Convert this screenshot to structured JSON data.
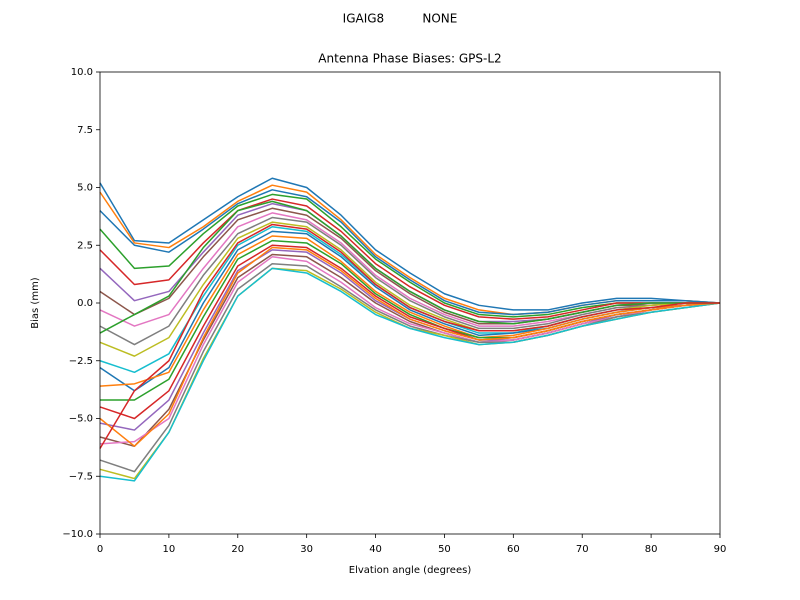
{
  "chart_data": {
    "type": "line",
    "suptitle": "IGAIG8          NONE",
    "title": "Antenna Phase Biases: GPS-L2",
    "xlabel": "Elvation angle (degrees)",
    "ylabel": "Bias (mm)",
    "x": [
      0,
      5,
      10,
      15,
      20,
      25,
      30,
      35,
      40,
      45,
      50,
      55,
      60,
      65,
      70,
      75,
      80,
      85,
      90
    ],
    "xlim": [
      0,
      90
    ],
    "xticks": [
      0,
      10,
      20,
      30,
      40,
      50,
      60,
      70,
      80,
      90
    ],
    "ylim": [
      -10,
      10
    ],
    "yticks": [
      {
        "value": -10,
        "label": "−10.0"
      },
      {
        "value": -7.5,
        "label": "−7.5"
      },
      {
        "value": -5,
        "label": "−5.0"
      },
      {
        "value": -2.5,
        "label": "−2.5"
      },
      {
        "value": 0,
        "label": "0.0"
      },
      {
        "value": 2.5,
        "label": "2.5"
      },
      {
        "value": 5,
        "label": "5.0"
      },
      {
        "value": 7.5,
        "label": "7.5"
      },
      {
        "value": 10,
        "label": "10.0"
      }
    ],
    "grid": false,
    "series": [
      {
        "color": "#1f77b4",
        "values": [
          5.2,
          2.7,
          2.6,
          3.6,
          4.6,
          5.4,
          5.0,
          3.8,
          2.3,
          1.3,
          0.4,
          -0.1,
          -0.3,
          -0.3,
          0.0,
          0.2,
          0.2,
          0.1,
          0
        ]
      },
      {
        "color": "#ff7f0e",
        "values": [
          4.8,
          2.6,
          2.4,
          3.3,
          4.4,
          5.1,
          4.8,
          3.6,
          2.1,
          1.1,
          0.2,
          -0.3,
          -0.5,
          -0.4,
          -0.1,
          0.1,
          0.1,
          0.1,
          0
        ]
      },
      {
        "color": "#2ca02c",
        "values": [
          3.2,
          1.5,
          1.6,
          3.0,
          4.2,
          4.7,
          4.5,
          3.3,
          1.9,
          0.9,
          0.0,
          -0.5,
          -0.6,
          -0.5,
          -0.2,
          0.0,
          0.0,
          0.0,
          0
        ]
      },
      {
        "color": "#d62728",
        "values": [
          2.3,
          0.8,
          1.0,
          2.6,
          4.0,
          4.5,
          4.2,
          3.1,
          1.7,
          0.7,
          -0.1,
          -0.6,
          -0.7,
          -0.6,
          -0.3,
          0.0,
          0.0,
          0.0,
          0
        ]
      },
      {
        "color": "#9467bd",
        "values": [
          1.5,
          0.1,
          0.5,
          2.2,
          3.8,
          4.3,
          4.0,
          2.9,
          1.5,
          0.5,
          -0.3,
          -0.8,
          -0.8,
          -0.7,
          -0.4,
          -0.1,
          0.0,
          0.0,
          0
        ]
      },
      {
        "color": "#8c564b",
        "values": [
          0.5,
          -0.5,
          0.2,
          2.0,
          3.6,
          4.1,
          3.8,
          2.8,
          1.4,
          0.4,
          -0.4,
          -0.9,
          -0.9,
          -0.7,
          -0.4,
          -0.1,
          -0.1,
          0.0,
          0
        ]
      },
      {
        "color": "#e377c2",
        "values": [
          -0.3,
          -1.0,
          -0.5,
          1.5,
          3.3,
          3.9,
          3.6,
          2.6,
          1.2,
          0.2,
          -0.5,
          -1.0,
          -1.0,
          -0.8,
          -0.5,
          -0.2,
          -0.1,
          0.0,
          0
        ]
      },
      {
        "color": "#7f7f7f",
        "values": [
          -1.0,
          -1.8,
          -1.0,
          1.2,
          3.0,
          3.7,
          3.5,
          2.5,
          1.1,
          0.1,
          -0.6,
          -1.1,
          -1.1,
          -0.9,
          -0.5,
          -0.2,
          -0.1,
          0.0,
          0
        ]
      },
      {
        "color": "#bcbd22",
        "values": [
          -1.7,
          -2.3,
          -1.5,
          0.8,
          2.8,
          3.5,
          3.3,
          2.3,
          0.9,
          -0.1,
          -0.7,
          -1.2,
          -1.2,
          -1.0,
          -0.6,
          -0.3,
          -0.1,
          0.0,
          0
        ]
      },
      {
        "color": "#17becf",
        "values": [
          -2.5,
          -3.0,
          -2.2,
          0.3,
          2.5,
          3.3,
          3.1,
          2.1,
          0.8,
          -0.2,
          -0.8,
          -1.3,
          -1.3,
          -1.0,
          -0.6,
          -0.3,
          -0.2,
          -0.1,
          0
        ]
      },
      {
        "color": "#1f77b4",
        "values": [
          -2.8,
          -3.8,
          -2.8,
          0.0,
          2.3,
          3.1,
          3.0,
          2.0,
          0.7,
          -0.3,
          -0.9,
          -1.4,
          -1.3,
          -1.1,
          -0.7,
          -0.4,
          -0.2,
          -0.1,
          0
        ]
      },
      {
        "color": "#ff7f0e",
        "values": [
          -3.6,
          -3.5,
          -3.0,
          -0.3,
          2.1,
          2.9,
          2.8,
          1.8,
          0.5,
          -0.4,
          -1.0,
          -1.5,
          -1.4,
          -1.1,
          -0.7,
          -0.4,
          -0.2,
          -0.1,
          0
        ]
      },
      {
        "color": "#2ca02c",
        "values": [
          -4.2,
          -4.2,
          -3.3,
          -0.6,
          1.9,
          2.7,
          2.6,
          1.7,
          0.4,
          -0.5,
          -1.1,
          -1.5,
          -1.5,
          -1.2,
          -0.8,
          -0.5,
          -0.3,
          -0.1,
          0
        ]
      },
      {
        "color": "#d62728",
        "values": [
          -4.5,
          -5.0,
          -3.8,
          -1.0,
          1.6,
          2.5,
          2.4,
          1.5,
          0.3,
          -0.6,
          -1.1,
          -1.6,
          -1.5,
          -1.2,
          -0.8,
          -0.5,
          -0.3,
          -0.1,
          0
        ]
      },
      {
        "color": "#9467bd",
        "values": [
          -5.2,
          -5.5,
          -4.2,
          -1.3,
          1.4,
          2.3,
          2.2,
          1.3,
          0.1,
          -0.7,
          -1.2,
          -1.6,
          -1.6,
          -1.3,
          -0.9,
          -0.5,
          -0.3,
          -0.1,
          0
        ]
      },
      {
        "color": "#8c564b",
        "values": [
          -5.8,
          -6.2,
          -4.6,
          -1.6,
          1.1,
          2.1,
          2.0,
          1.1,
          0.0,
          -0.8,
          -1.3,
          -1.7,
          -1.6,
          -1.3,
          -0.9,
          -0.6,
          -0.3,
          -0.1,
          0
        ]
      },
      {
        "color": "#e377c2",
        "values": [
          -6.1,
          -6.0,
          -5.0,
          -1.8,
          0.9,
          2.0,
          1.8,
          0.9,
          -0.2,
          -0.9,
          -1.3,
          -1.7,
          -1.6,
          -1.3,
          -0.9,
          -0.6,
          -0.3,
          -0.1,
          0
        ]
      },
      {
        "color": "#7f7f7f",
        "values": [
          -6.8,
          -7.3,
          -5.3,
          -2.1,
          0.6,
          1.7,
          1.6,
          0.7,
          -0.3,
          -1.0,
          -1.4,
          -1.7,
          -1.7,
          -1.4,
          -1.0,
          -0.6,
          -0.4,
          -0.2,
          0
        ]
      },
      {
        "color": "#bcbd22",
        "values": [
          -7.2,
          -7.6,
          -5.6,
          -2.4,
          0.3,
          1.5,
          1.4,
          0.6,
          -0.4,
          -1.1,
          -1.4,
          -1.8,
          -1.7,
          -1.4,
          -1.0,
          -0.7,
          -0.4,
          -0.2,
          0
        ]
      },
      {
        "color": "#17becf",
        "values": [
          -7.5,
          -7.7,
          -5.6,
          -2.5,
          0.3,
          1.5,
          1.3,
          0.5,
          -0.5,
          -1.1,
          -1.5,
          -1.8,
          -1.7,
          -1.4,
          -1.0,
          -0.7,
          -0.4,
          -0.2,
          0
        ]
      },
      {
        "color": "#1f77b4",
        "values": [
          4.0,
          2.5,
          2.2,
          3.2,
          4.3,
          4.9,
          4.6,
          3.5,
          2.0,
          1.0,
          0.1,
          -0.4,
          -0.5,
          -0.4,
          -0.1,
          0.1,
          0.1,
          0.1,
          0
        ]
      },
      {
        "color": "#ff7f0e",
        "values": [
          -5.0,
          -6.2,
          -4.8,
          -1.5,
          1.3,
          2.4,
          2.3,
          1.4,
          0.2,
          -0.7,
          -1.2,
          -1.6,
          -1.5,
          -1.2,
          -0.8,
          -0.5,
          -0.3,
          -0.1,
          0
        ]
      },
      {
        "color": "#2ca02c",
        "values": [
          -1.3,
          -0.5,
          0.3,
          2.4,
          4.0,
          4.4,
          4.0,
          2.9,
          1.5,
          0.5,
          -0.3,
          -0.8,
          -0.9,
          -0.7,
          -0.4,
          -0.1,
          0.0,
          0.0,
          0
        ]
      },
      {
        "color": "#d62728",
        "values": [
          -6.3,
          -3.8,
          -2.5,
          0.5,
          2.6,
          3.4,
          3.2,
          2.2,
          0.8,
          -0.2,
          -0.8,
          -1.2,
          -1.2,
          -1.0,
          -0.6,
          -0.3,
          -0.2,
          0.0,
          0
        ]
      }
    ]
  }
}
